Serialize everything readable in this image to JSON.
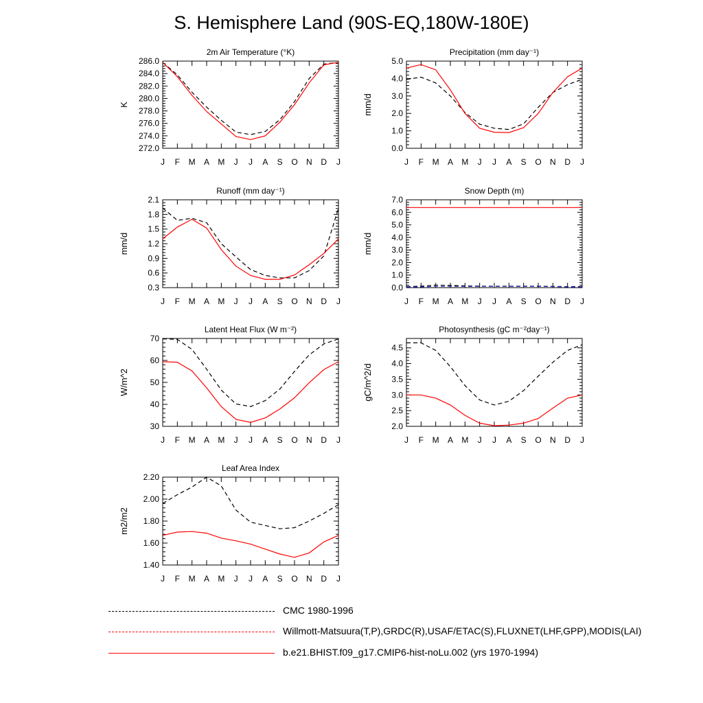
{
  "title": "S. Hemisphere Land (90S-EQ,180W-180E)",
  "colors": {
    "model": "#ff0000",
    "obs": "#000000",
    "obs_alt": "#2222cc"
  },
  "months": [
    "J",
    "F",
    "M",
    "A",
    "M",
    "J",
    "J",
    "A",
    "S",
    "O",
    "N",
    "D",
    "J"
  ],
  "legend": [
    {
      "label": "CMC 1980-1996",
      "style": "dashed-black"
    },
    {
      "label": "Willmott-Matsuura(T,P),GRDC(R),USAF/ETAC(S),FLUXNET(LHF,GPP),MODIS(LAI)",
      "style": "dashed-red-blue"
    },
    {
      "label": "b.e21.BHIST.f09_g17.CMIP6-hist-noLu.002 (yrs 1970-1994)",
      "style": "solid-red"
    }
  ],
  "chart_data": [
    {
      "type": "line",
      "title": "2m Air Temperature (°K)",
      "ylabel": "K",
      "ylim": [
        272,
        286
      ],
      "yticks": [
        "272.0",
        "274.0",
        "276.0",
        "278.0",
        "280.0",
        "282.0",
        "284.0",
        "286.0"
      ],
      "series": [
        {
          "role": "obs",
          "values": [
            285.8,
            283.8,
            281.0,
            278.6,
            276.5,
            274.6,
            274.2,
            274.7,
            276.6,
            279.5,
            283.2,
            285.5,
            285.8
          ]
        },
        {
          "role": "model",
          "values": [
            285.8,
            283.5,
            280.5,
            277.9,
            275.9,
            273.9,
            273.4,
            274.0,
            276.2,
            279.0,
            282.5,
            285.4,
            285.8
          ]
        }
      ]
    },
    {
      "type": "line",
      "title": "Precipitation (mm day⁻¹)",
      "ylabel": "mm/d",
      "ylim": [
        0,
        5
      ],
      "yticks": [
        "0.0",
        "1.0",
        "2.0",
        "3.0",
        "4.0",
        "5.0"
      ],
      "series": [
        {
          "role": "obs",
          "values": [
            3.95,
            4.08,
            3.75,
            3.0,
            2.05,
            1.38,
            1.15,
            1.08,
            1.4,
            2.35,
            3.2,
            3.65,
            3.95
          ]
        },
        {
          "role": "model",
          "values": [
            4.6,
            4.8,
            4.5,
            3.35,
            2.0,
            1.15,
            0.92,
            0.9,
            1.18,
            2.0,
            3.2,
            4.1,
            4.6
          ]
        }
      ]
    },
    {
      "type": "line",
      "title": "Runoff (mm day⁻¹)",
      "ylabel": "mm/d",
      "ylim": [
        0.3,
        2.1
      ],
      "yticks": [
        "0.3",
        "0.6",
        "0.9",
        "1.2",
        "1.5",
        "1.8",
        "2.1"
      ],
      "series": [
        {
          "role": "obs",
          "values": [
            1.93,
            1.68,
            1.72,
            1.63,
            1.2,
            0.93,
            0.67,
            0.55,
            0.5,
            0.5,
            0.65,
            0.95,
            1.93
          ]
        },
        {
          "role": "model",
          "values": [
            1.3,
            1.54,
            1.7,
            1.52,
            1.08,
            0.74,
            0.55,
            0.47,
            0.47,
            0.56,
            0.77,
            1.0,
            1.3
          ]
        }
      ]
    },
    {
      "type": "line",
      "title": "Snow Depth (m)",
      "ylabel": "mm/d",
      "ylim": [
        0,
        7
      ],
      "yticks": [
        "0.0",
        "1.0",
        "2.0",
        "3.0",
        "4.0",
        "5.0",
        "6.0",
        "7.0"
      ],
      "series": [
        {
          "role": "obs",
          "values": [
            0.08,
            0.12,
            0.2,
            0.18,
            0.14,
            0.12,
            0.12,
            0.12,
            0.12,
            0.12,
            0.1,
            0.08,
            0.08
          ]
        },
        {
          "role": "obs_alt",
          "values": [
            0.04,
            0.06,
            0.1,
            0.1,
            0.1,
            0.1,
            0.1,
            0.1,
            0.1,
            0.1,
            0.08,
            0.06,
            0.04
          ]
        },
        {
          "role": "model",
          "values": [
            6.38,
            6.38,
            6.38,
            6.38,
            6.38,
            6.38,
            6.38,
            6.38,
            6.38,
            6.38,
            6.38,
            6.38,
            6.38
          ]
        }
      ]
    },
    {
      "type": "line",
      "title": "Latent Heat Flux (W m⁻²)",
      "ylabel": "W/m^2",
      "ylim": [
        30,
        70
      ],
      "yticks": [
        "30",
        "40",
        "50",
        "60",
        "70"
      ],
      "series": [
        {
          "role": "obs",
          "values": [
            69.8,
            69.6,
            65.0,
            56.0,
            46.5,
            40.2,
            39.0,
            41.7,
            47.0,
            55.0,
            62.5,
            67.5,
            69.8
          ]
        },
        {
          "role": "model",
          "values": [
            59.4,
            59.2,
            55.2,
            47.5,
            39.0,
            33.2,
            31.8,
            33.8,
            37.9,
            43.0,
            49.8,
            55.8,
            59.4
          ]
        }
      ]
    },
    {
      "type": "line",
      "title": "Photosynthesis (gC m⁻²day⁻¹)",
      "ylabel": "gC/m^2/d",
      "ylim": [
        2,
        4.8
      ],
      "yticks": [
        "2.0",
        "2.5",
        "3.0",
        "3.5",
        "4.0",
        "4.5"
      ],
      "series": [
        {
          "role": "obs",
          "values": [
            4.66,
            4.66,
            4.42,
            3.9,
            3.3,
            2.84,
            2.68,
            2.8,
            3.14,
            3.6,
            4.04,
            4.42,
            4.6
          ]
        },
        {
          "role": "model",
          "values": [
            3.0,
            3.0,
            2.9,
            2.68,
            2.35,
            2.1,
            2.02,
            2.04,
            2.1,
            2.25,
            2.58,
            2.9,
            3.0
          ]
        }
      ]
    },
    {
      "type": "line",
      "title": "Leaf Area Index",
      "ylabel": "m2/m2",
      "ylim": [
        1.4,
        2.2
      ],
      "yticks": [
        "1.40",
        "1.60",
        "1.80",
        "2.00",
        "2.20"
      ],
      "series": [
        {
          "role": "obs",
          "values": [
            1.96,
            2.04,
            2.11,
            2.2,
            2.12,
            1.9,
            1.79,
            1.76,
            1.73,
            1.74,
            1.8,
            1.87,
            1.95
          ]
        },
        {
          "role": "model",
          "values": [
            1.67,
            1.7,
            1.705,
            1.69,
            1.645,
            1.62,
            1.59,
            1.545,
            1.5,
            1.47,
            1.51,
            1.61,
            1.67
          ]
        }
      ]
    }
  ]
}
